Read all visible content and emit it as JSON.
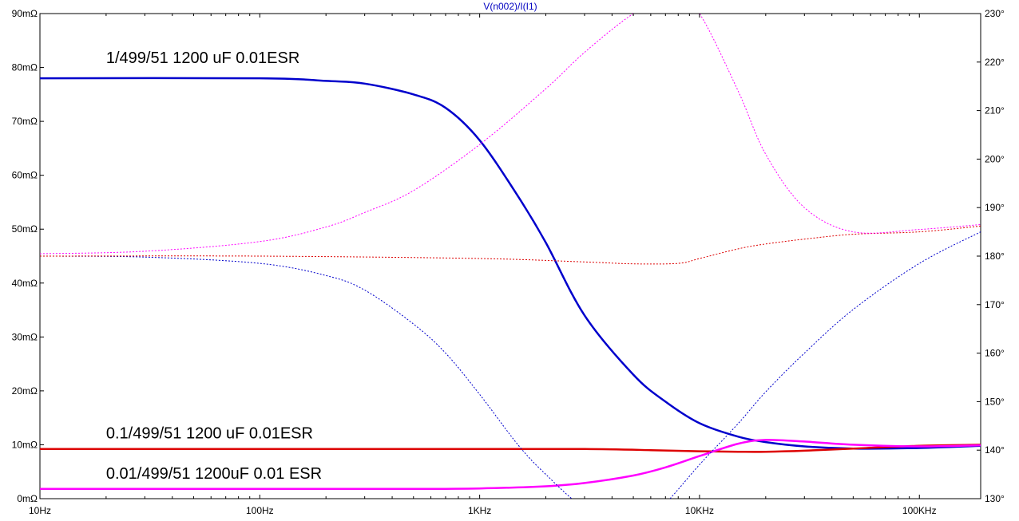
{
  "chart_data": {
    "type": "line",
    "title": "V(n002)/I(I1)",
    "x_scale": "log",
    "xlim": [
      10,
      190000
    ],
    "x_ticks": [
      10,
      100,
      1000,
      10000,
      100000
    ],
    "x_tick_labels": [
      "10Hz",
      "100Hz",
      "1KHz",
      "10KHz",
      "100KHz"
    ],
    "ylim_left": [
      0,
      90
    ],
    "y_left_ticks": [
      0,
      10,
      20,
      30,
      40,
      50,
      60,
      70,
      80,
      90
    ],
    "y_left_tick_labels": [
      "0mΩ",
      "10mΩ",
      "20mΩ",
      "30mΩ",
      "40mΩ",
      "50mΩ",
      "60mΩ",
      "70mΩ",
      "80mΩ",
      "90mΩ"
    ],
    "ylim_right": [
      130,
      230
    ],
    "y_right_ticks": [
      130,
      140,
      150,
      160,
      170,
      180,
      190,
      200,
      210,
      220,
      230
    ],
    "y_right_tick_labels": [
      "130°",
      "140°",
      "150°",
      "160°",
      "170°",
      "180°",
      "190°",
      "200°",
      "210°",
      "220°",
      "230°"
    ],
    "grid": false,
    "series": [
      {
        "name": "1/499/51 1200 uF 0.01ESR",
        "color": "#0000cc",
        "axis": "left",
        "style": "solid",
        "x": [
          10,
          100,
          200,
          300,
          500,
          700,
          1000,
          1500,
          2000,
          3000,
          5000,
          7000,
          10000,
          15000,
          20000,
          30000,
          50000,
          100000,
          190000
        ],
        "y": [
          78,
          78,
          77.5,
          77,
          75,
          72.5,
          66.5,
          56,
          47.5,
          34,
          23,
          18,
          14,
          11.5,
          10.5,
          9.7,
          9.3,
          9.4,
          9.8
        ]
      },
      {
        "name": "0.1/499/51 1200 uF 0.01ESR",
        "color": "#dd0000",
        "axis": "left",
        "style": "solid",
        "x": [
          10,
          100,
          1000,
          3000,
          6000,
          10000,
          15000,
          20000,
          30000,
          50000,
          100000,
          190000
        ],
        "y": [
          9.2,
          9.2,
          9.2,
          9.2,
          9.0,
          8.8,
          8.7,
          8.7,
          8.9,
          9.3,
          9.8,
          10.0
        ]
      },
      {
        "name": "0.01/499/51 1200uF 0.01 ESR",
        "color": "#ff00ff",
        "axis": "left",
        "style": "solid",
        "x": [
          10,
          100,
          500,
          1000,
          2000,
          3000,
          5000,
          7000,
          10000,
          15000,
          20000,
          30000,
          50000,
          100000,
          190000
        ],
        "y": [
          1.8,
          1.8,
          1.8,
          1.9,
          2.3,
          2.9,
          4.3,
          5.8,
          7.9,
          10.2,
          10.9,
          10.6,
          10.0,
          9.7,
          9.9
        ]
      },
      {
        "name": "",
        "color": "#0000cc",
        "axis": "right",
        "style": "dashed",
        "x": [
          10,
          30,
          100,
          200,
          300,
          500,
          700,
          1000,
          1500,
          2000,
          3000,
          5000,
          7000,
          10000,
          15000,
          20000,
          30000,
          50000,
          100000,
          190000
        ],
        "y": [
          180,
          179.8,
          178.5,
          176,
          173,
          166,
          160,
          151.5,
          141,
          135,
          128,
          123,
          129,
          137,
          145.5,
          152,
          160,
          169,
          178.5,
          185
        ]
      },
      {
        "name": "",
        "color": "#dd0000",
        "axis": "right",
        "style": "dashed",
        "x": [
          10,
          100,
          1000,
          3000,
          5000,
          8000,
          10000,
          15000,
          20000,
          30000,
          50000,
          100000,
          190000
        ],
        "y": [
          180,
          180,
          179.5,
          178.8,
          178.4,
          178.5,
          179.5,
          181.5,
          182.5,
          183.5,
          184.5,
          185.0,
          186.2
        ]
      },
      {
        "name": "",
        "color": "#ff00ff",
        "axis": "right",
        "style": "dashed",
        "x": [
          10,
          30,
          100,
          200,
          300,
          500,
          1000,
          2000,
          3000,
          5000,
          7000,
          8000,
          10000,
          15000,
          20000,
          30000,
          50000,
          100000,
          190000
        ],
        "y": [
          180.5,
          181,
          183,
          186,
          189,
          193.5,
          203,
          214.5,
          222,
          230,
          233,
          232.5,
          230,
          214,
          201,
          190,
          185,
          185.5,
          186.5
        ]
      }
    ],
    "annotations": [
      {
        "text": "1/499/51 1200 uF 0.01ESR",
        "x": 20,
        "y": 80.8,
        "axis": "left"
      },
      {
        "text": "0.1/499/51 1200 uF 0.01ESR",
        "x": 20,
        "y": 11.2,
        "axis": "left"
      },
      {
        "text": "0.01/499/51 1200uF 0.01 ESR",
        "x": 20,
        "y": 3.7,
        "axis": "left"
      }
    ]
  }
}
